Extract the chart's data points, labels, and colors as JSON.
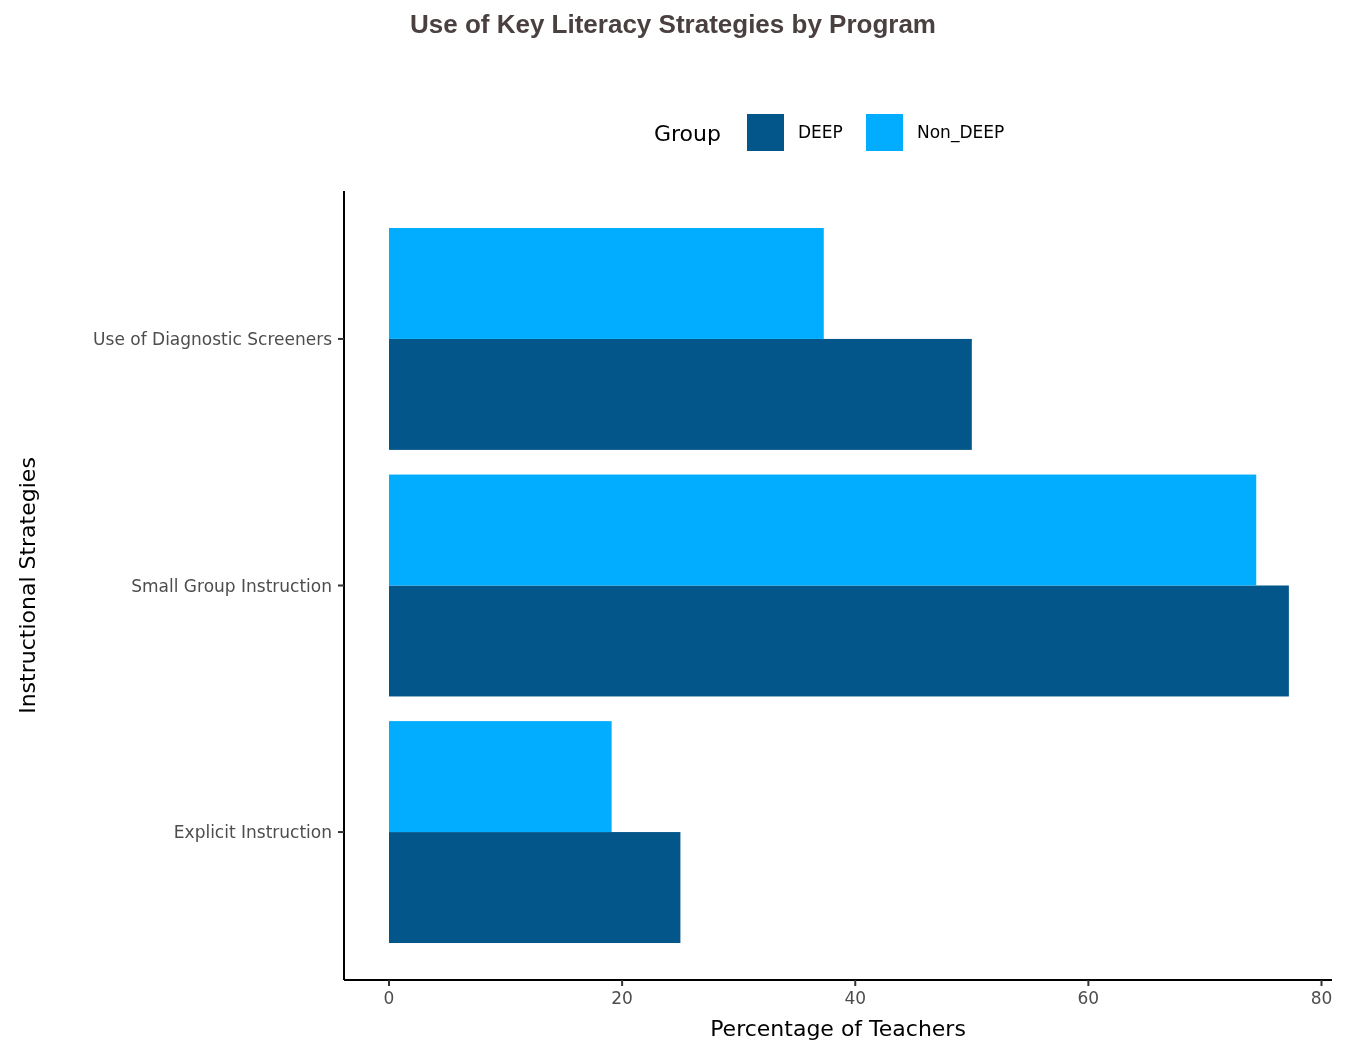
{
  "chart_data": {
    "type": "bar",
    "orientation": "horizontal",
    "title": "Use of Key Literacy Strategies by Program",
    "xlabel": "Percentage of Teachers",
    "ylabel": "Instructional Strategies",
    "legend_title": "Group",
    "legend": "top",
    "categories": [
      "Use of Diagnostic Screeners",
      "Small Group Instruction",
      "Explicit Instruction"
    ],
    "series": [
      {
        "name": "DEEP",
        "color": "#02568a",
        "values": [
          50,
          77.2,
          25
        ]
      },
      {
        "name": "Non_DEEP",
        "color": "#02adff",
        "values": [
          37.3,
          74.4,
          19.1
        ]
      }
    ],
    "xlim": [
      -3.86,
      80.9
    ],
    "xticks": [
      0,
      20,
      40,
      60,
      80
    ],
    "grid": false
  }
}
